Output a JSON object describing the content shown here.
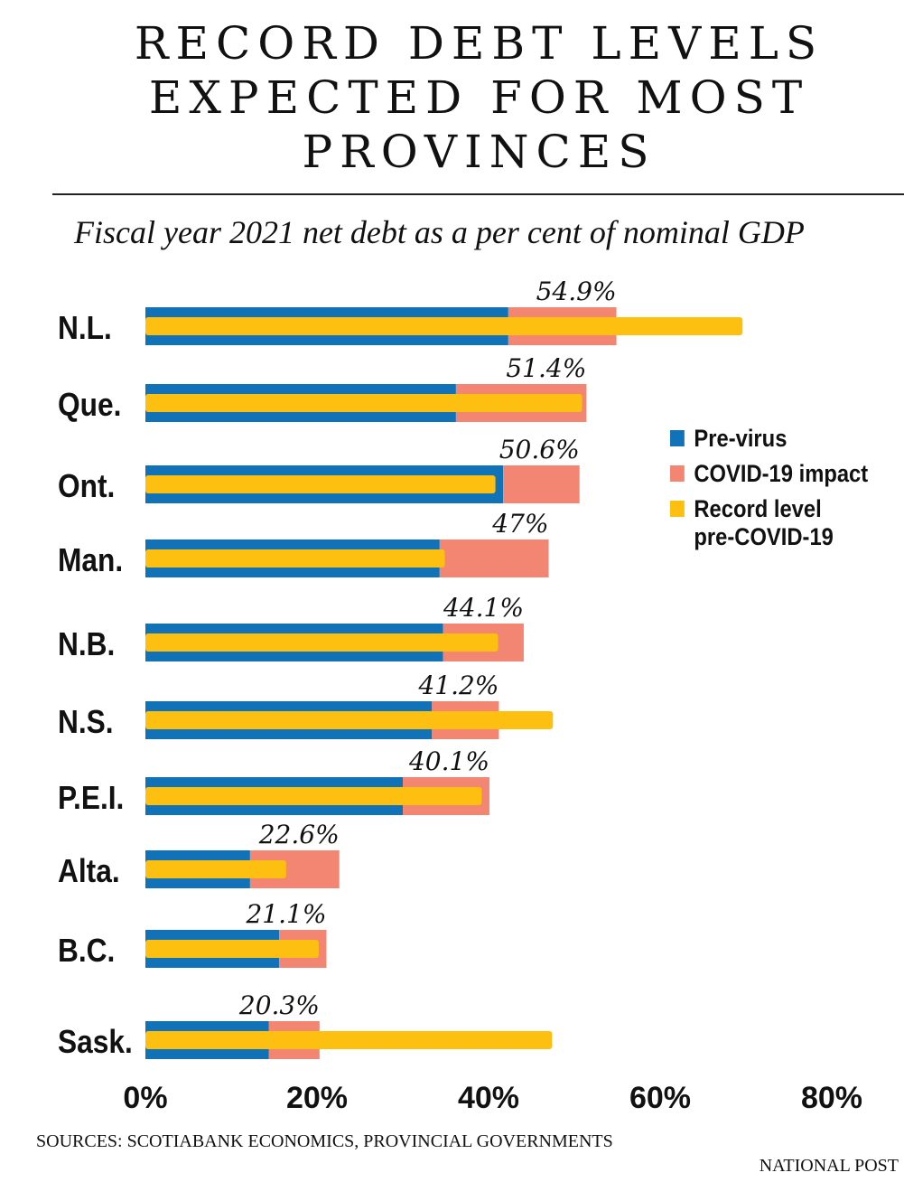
{
  "chart_data": {
    "type": "bar",
    "title": "RECORD DEBT LEVELS EXPECTED FOR MOST PROVINCES",
    "subtitle": "Fiscal year 2021 net debt as a per cent of nominal GDP",
    "categories": [
      "N.L.",
      "Que.",
      "Ont.",
      "Man.",
      "N.B.",
      "N.S.",
      "P.E.I.",
      "Alta.",
      "B.C.",
      "Sask."
    ],
    "series": [
      {
        "name": "Pre-virus",
        "color": "#1172b8",
        "values": [
          42.3,
          36.2,
          41.7,
          34.3,
          34.7,
          33.4,
          30.0,
          12.2,
          15.6,
          14.4
        ]
      },
      {
        "name": "COVID-19 impact",
        "color": "#f38672",
        "values": [
          12.6,
          15.2,
          8.9,
          12.7,
          9.4,
          7.8,
          10.1,
          10.4,
          5.5,
          5.9
        ]
      },
      {
        "name": "Record level pre-COVID-19",
        "color": "#fdbf10",
        "values": [
          69.6,
          50.9,
          40.8,
          34.9,
          41.1,
          47.5,
          39.2,
          16.4,
          20.2,
          47.4
        ]
      }
    ],
    "data_labels": [
      "54.9%",
      "51.4%",
      "50.6%",
      "47%",
      "44.1%",
      "41.2%",
      "40.1%",
      "22.6%",
      "21.1%",
      "20.3%"
    ],
    "xticks": [
      "0%",
      "20%",
      "40%",
      "60%",
      "80%"
    ],
    "xlim": [
      0,
      80
    ],
    "grid": false,
    "legend": "right"
  },
  "legend": {
    "items": [
      "Pre-virus",
      "COVID-19 impact",
      "Record level pre-COVID-19"
    ],
    "line3a": "Record level",
    "line3b": "pre-COVID-19"
  },
  "sources": "SOURCES: SCOTIABANK ECONOMICS, PROVINCIAL GOVERNMENTS",
  "credit": "NATIONAL POST"
}
